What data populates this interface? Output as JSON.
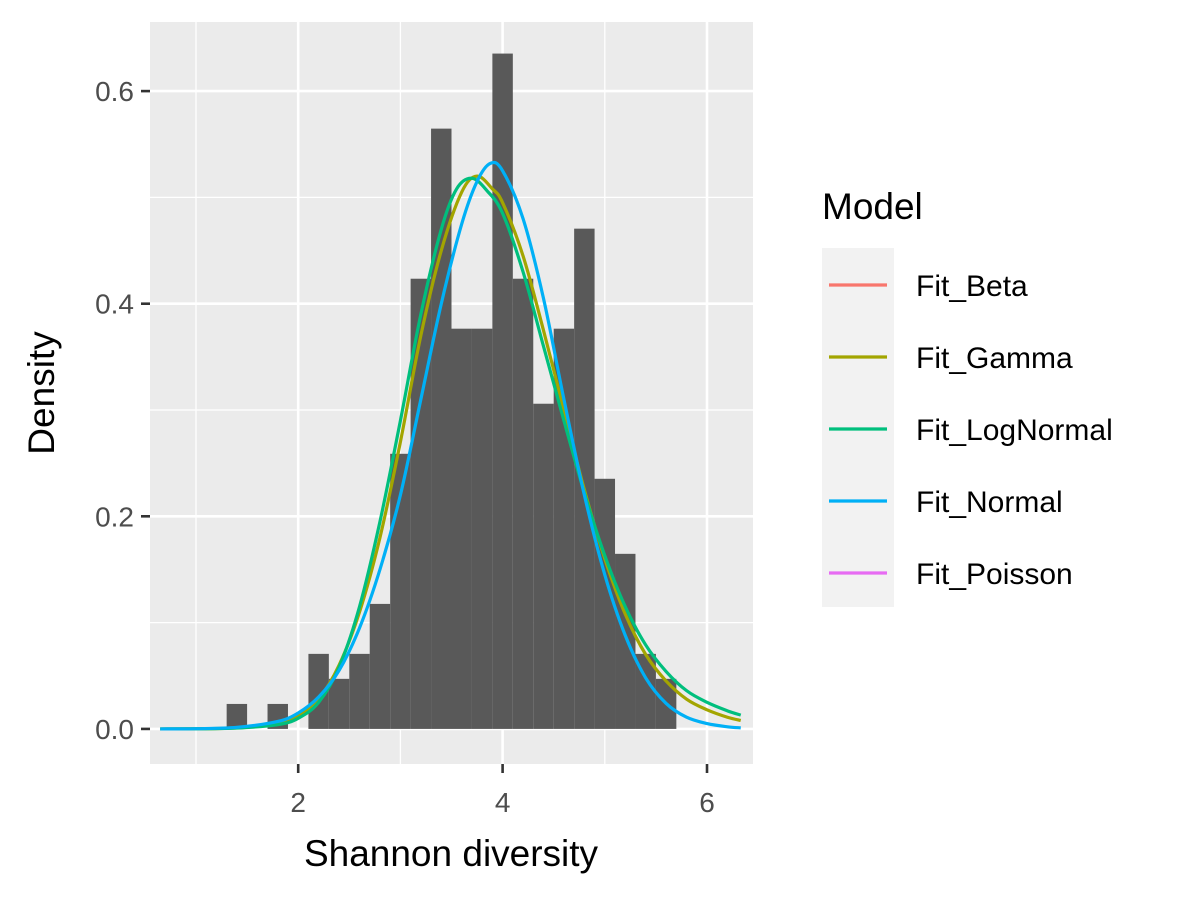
{
  "chart_data": {
    "type": "histogram",
    "title": "",
    "xlabel": "Shannon diversity",
    "ylabel": "Density",
    "xlim": [
      0.55,
      6.45
    ],
    "ylim": [
      -0.033,
      0.665
    ],
    "x_ticks": [
      2,
      4,
      6
    ],
    "x_tick_labels": [
      "2",
      "4",
      "6"
    ],
    "y_ticks": [
      0.0,
      0.2,
      0.4,
      0.6
    ],
    "y_tick_labels": [
      "0.0",
      "0.2",
      "0.4",
      "0.6"
    ],
    "grid": true,
    "histogram": {
      "fill": "#595959",
      "bins": [
        {
          "x0": 1.3,
          "x1": 1.5,
          "density": 0.0235
        },
        {
          "x0": 1.5,
          "x1": 1.7,
          "density": 0.0
        },
        {
          "x0": 1.7,
          "x1": 1.9,
          "density": 0.0235
        },
        {
          "x0": 1.9,
          "x1": 2.1,
          "density": 0.0
        },
        {
          "x0": 2.1,
          "x1": 2.3,
          "density": 0.0706
        },
        {
          "x0": 2.3,
          "x1": 2.5,
          "density": 0.0471
        },
        {
          "x0": 2.5,
          "x1": 2.7,
          "density": 0.0706
        },
        {
          "x0": 2.7,
          "x1": 2.9,
          "density": 0.1176
        },
        {
          "x0": 2.9,
          "x1": 3.1,
          "density": 0.2588
        },
        {
          "x0": 3.1,
          "x1": 3.3,
          "density": 0.4235
        },
        {
          "x0": 3.3,
          "x1": 3.5,
          "density": 0.5647
        },
        {
          "x0": 3.5,
          "x1": 3.7,
          "density": 0.3765
        },
        {
          "x0": 3.7,
          "x1": 3.9,
          "density": 0.3765
        },
        {
          "x0": 3.9,
          "x1": 4.1,
          "density": 0.6353
        },
        {
          "x0": 4.1,
          "x1": 4.3,
          "density": 0.4235
        },
        {
          "x0": 4.3,
          "x1": 4.5,
          "density": 0.3059
        },
        {
          "x0": 4.5,
          "x1": 4.7,
          "density": 0.3765
        },
        {
          "x0": 4.7,
          "x1": 4.9,
          "density": 0.4706
        },
        {
          "x0": 4.9,
          "x1": 5.1,
          "density": 0.2353
        },
        {
          "x0": 5.1,
          "x1": 5.3,
          "density": 0.1647
        },
        {
          "x0": 5.3,
          "x1": 5.5,
          "density": 0.0706
        },
        {
          "x0": 5.5,
          "x1": 5.7,
          "density": 0.0471
        }
      ]
    },
    "series": [
      {
        "name": "Fit_Beta",
        "color": "#F8766D",
        "type": "line",
        "points": []
      },
      {
        "name": "Fit_Gamma",
        "color": "#A3A500",
        "type": "line",
        "points": [
          [
            0.65,
            0.0
          ],
          [
            1.0,
            0.0002
          ],
          [
            1.4,
            0.001
          ],
          [
            1.8,
            0.005
          ],
          [
            2.0,
            0.012
          ],
          [
            2.2,
            0.028
          ],
          [
            2.4,
            0.06
          ],
          [
            2.6,
            0.11
          ],
          [
            2.8,
            0.18
          ],
          [
            3.0,
            0.27
          ],
          [
            3.2,
            0.37
          ],
          [
            3.4,
            0.45
          ],
          [
            3.6,
            0.505
          ],
          [
            3.75,
            0.52
          ],
          [
            3.9,
            0.508
          ],
          [
            4.0,
            0.495
          ],
          [
            4.2,
            0.445
          ],
          [
            4.4,
            0.375
          ],
          [
            4.6,
            0.3
          ],
          [
            4.8,
            0.225
          ],
          [
            5.0,
            0.16
          ],
          [
            5.2,
            0.108
          ],
          [
            5.4,
            0.07
          ],
          [
            5.6,
            0.045
          ],
          [
            5.8,
            0.028
          ],
          [
            6.0,
            0.018
          ],
          [
            6.2,
            0.011
          ],
          [
            6.33,
            0.008
          ]
        ]
      },
      {
        "name": "Fit_LogNormal",
        "color": "#00BF7D",
        "type": "line",
        "points": [
          [
            0.65,
            0.0
          ],
          [
            1.0,
            0.0001
          ],
          [
            1.4,
            0.0008
          ],
          [
            1.8,
            0.004
          ],
          [
            2.0,
            0.01
          ],
          [
            2.2,
            0.025
          ],
          [
            2.4,
            0.058
          ],
          [
            2.6,
            0.115
          ],
          [
            2.8,
            0.195
          ],
          [
            3.0,
            0.29
          ],
          [
            3.2,
            0.39
          ],
          [
            3.4,
            0.47
          ],
          [
            3.55,
            0.508
          ],
          [
            3.7,
            0.518
          ],
          [
            3.85,
            0.506
          ],
          [
            4.0,
            0.485
          ],
          [
            4.2,
            0.43
          ],
          [
            4.4,
            0.36
          ],
          [
            4.6,
            0.29
          ],
          [
            4.8,
            0.222
          ],
          [
            5.0,
            0.163
          ],
          [
            5.2,
            0.115
          ],
          [
            5.4,
            0.079
          ],
          [
            5.6,
            0.054
          ],
          [
            5.8,
            0.036
          ],
          [
            6.0,
            0.025
          ],
          [
            6.2,
            0.017
          ],
          [
            6.33,
            0.013
          ]
        ]
      },
      {
        "name": "Fit_Normal",
        "color": "#00B0F6",
        "type": "line",
        "points": [
          [
            0.65,
            0.0
          ],
          [
            1.0,
            0.0002
          ],
          [
            1.4,
            0.0015
          ],
          [
            1.8,
            0.007
          ],
          [
            2.0,
            0.015
          ],
          [
            2.2,
            0.03
          ],
          [
            2.4,
            0.055
          ],
          [
            2.6,
            0.095
          ],
          [
            2.8,
            0.15
          ],
          [
            3.0,
            0.22
          ],
          [
            3.2,
            0.31
          ],
          [
            3.4,
            0.4
          ],
          [
            3.6,
            0.475
          ],
          [
            3.75,
            0.515
          ],
          [
            3.88,
            0.532
          ],
          [
            4.0,
            0.525
          ],
          [
            4.2,
            0.48
          ],
          [
            4.4,
            0.405
          ],
          [
            4.6,
            0.31
          ],
          [
            4.8,
            0.22
          ],
          [
            5.0,
            0.145
          ],
          [
            5.2,
            0.088
          ],
          [
            5.4,
            0.048
          ],
          [
            5.6,
            0.024
          ],
          [
            5.8,
            0.011
          ],
          [
            6.0,
            0.005
          ],
          [
            6.2,
            0.002
          ],
          [
            6.33,
            0.001
          ]
        ]
      },
      {
        "name": "Fit_Poisson",
        "color": "#E76BF3",
        "type": "line",
        "points": []
      }
    ],
    "legend": {
      "title": "Model",
      "position": "right",
      "entries": [
        {
          "label": "Fit_Beta",
          "color": "#F8766D"
        },
        {
          "label": "Fit_Gamma",
          "color": "#A3A500"
        },
        {
          "label": "Fit_LogNormal",
          "color": "#00BF7D"
        },
        {
          "label": "Fit_Normal",
          "color": "#00B0F6"
        },
        {
          "label": "Fit_Poisson",
          "color": "#E76BF3"
        }
      ]
    },
    "panel_background": "#EBEBEB",
    "grid_color": "#FFFFFF",
    "legend_key_background": "#F2F2F2"
  }
}
